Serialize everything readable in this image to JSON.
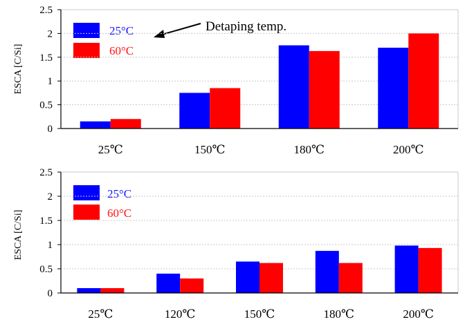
{
  "chart_data": [
    {
      "type": "bar",
      "ylabel": "ESCA [C/Si]",
      "ylim": [
        0,
        2.5
      ],
      "yticks": [
        "0",
        "0.5",
        "1",
        "1.5",
        "2",
        "2.5"
      ],
      "categories": [
        "25℃",
        "150℃",
        "180℃",
        "200℃"
      ],
      "series": [
        {
          "name": "25°C",
          "color": "#0000ff",
          "values": [
            0.15,
            0.75,
            1.75,
            1.7
          ]
        },
        {
          "name": "60°C",
          "color": "#ff0000",
          "values": [
            0.2,
            0.85,
            1.63,
            2.0
          ]
        }
      ],
      "legend": "top-left",
      "grid": "horizontal",
      "annotation": "Detaping temp."
    },
    {
      "type": "bar",
      "ylabel": "ESCA [C/Si]",
      "ylim": [
        0,
        2.5
      ],
      "yticks": [
        "0",
        "0.5",
        "1",
        "1.5",
        "2",
        "2.5"
      ],
      "categories": [
        "25℃",
        "120℃",
        "150℃",
        "180℃",
        "200℃"
      ],
      "series": [
        {
          "name": "25°C",
          "color": "#0000ff",
          "values": [
            0.1,
            0.4,
            0.65,
            0.87,
            0.98
          ]
        },
        {
          "name": "60°C",
          "color": "#ff0000",
          "values": [
            0.1,
            0.3,
            0.62,
            0.62,
            0.93
          ]
        }
      ],
      "legend": "top-left",
      "grid": "horizontal"
    }
  ]
}
